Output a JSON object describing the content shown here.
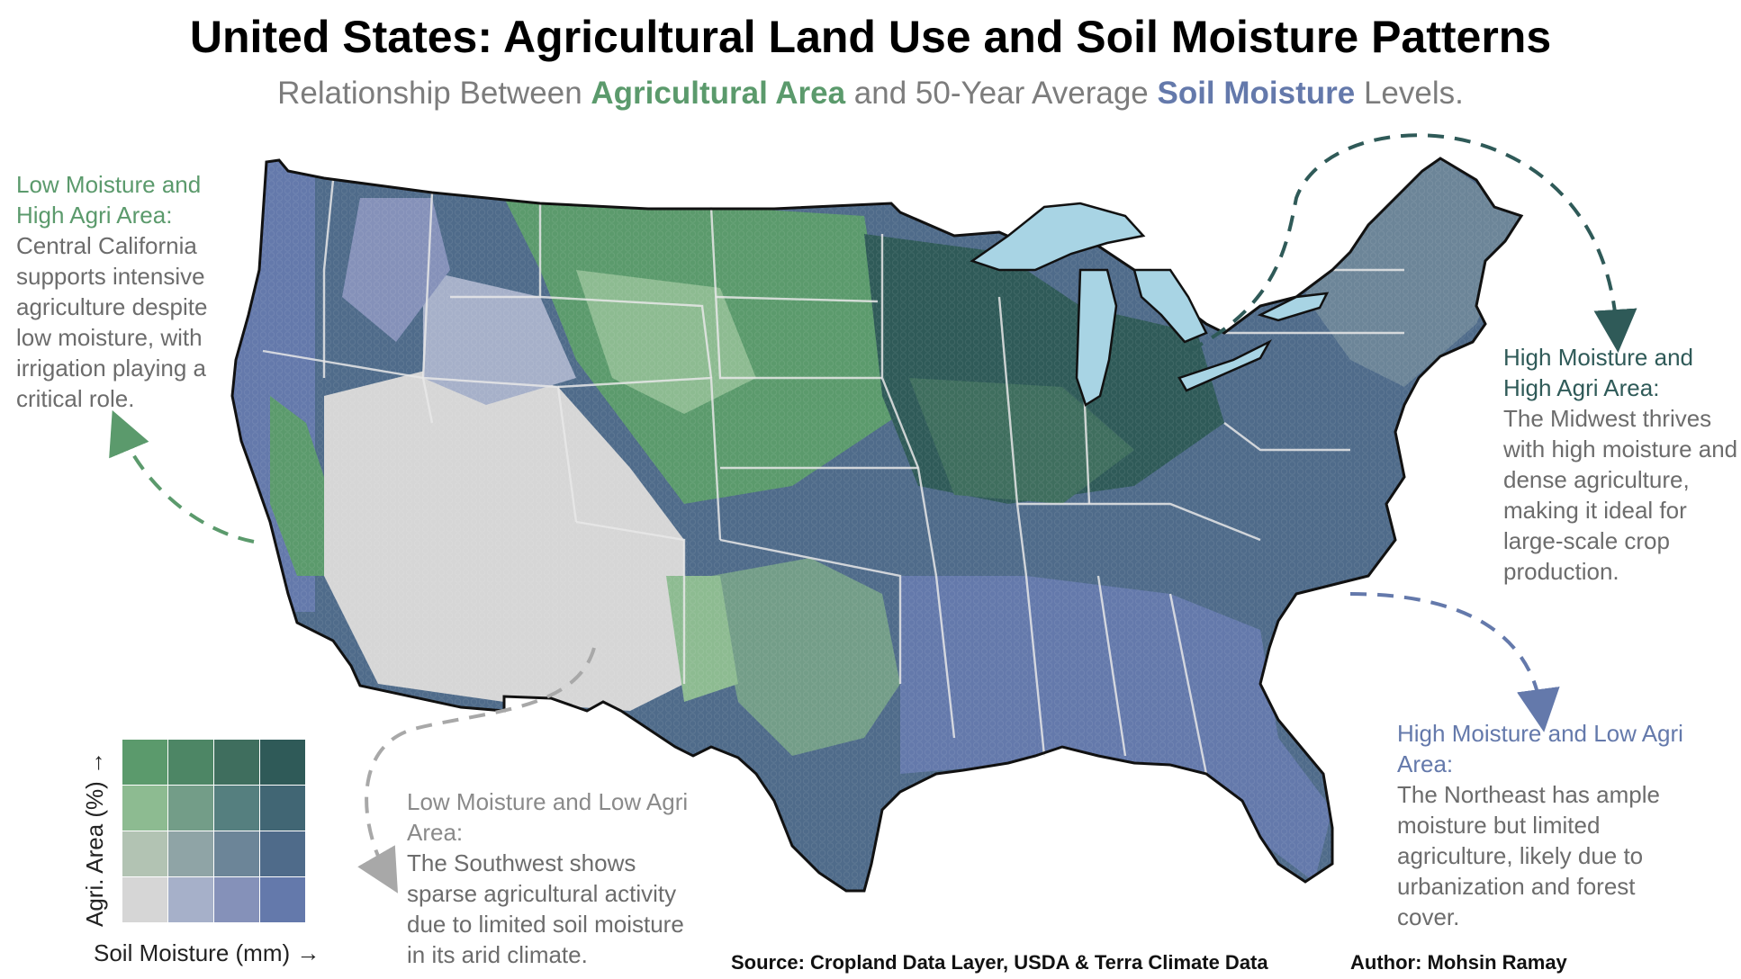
{
  "title": "United States: Agricultural Land Use and Soil Moisture Patterns",
  "subtitle": {
    "pre": "Relationship Between ",
    "agri": "Agricultural Area",
    "mid": " and 50-Year Average ",
    "moist": "Soil Moisture",
    "post": " Levels."
  },
  "annotations": {
    "california": {
      "heading": "Low Moisture and High Agri Area:",
      "body": "Central California supports intensive agriculture despite low moisture, with irrigation playing a critical role."
    },
    "midwest": {
      "heading": "High Moisture and High Agri Area:",
      "body": "The Midwest thrives with high moisture and dense agriculture, making it ideal for large-scale crop production."
    },
    "northeast": {
      "heading": "High Moisture and Low Agri Area:",
      "body": "The Northeast has ample moisture but limited agriculture, likely due to urbanization and forest cover."
    },
    "southwest": {
      "heading": "Low Moisture and Low Agri Area:",
      "body": "The Southwest shows sparse agricultural activity due to limited soil moisture in its arid climate."
    }
  },
  "legend": {
    "y_label": "Agri. Area (%) →",
    "x_label": "Soil Moisture (mm) →",
    "grid": [
      [
        "#d6d6d6",
        "#a6b0c9",
        "#8591b9",
        "#6479ab"
      ],
      [
        "#b2c3b3",
        "#8fa4a6",
        "#6c8598",
        "#4f6b8a"
      ],
      [
        "#8dbb91",
        "#739d88",
        "#557f7f",
        "#416674"
      ],
      [
        "#5b9a6c",
        "#4d8665",
        "#3f6e5e",
        "#2f5a58"
      ]
    ]
  },
  "colors": {
    "arid_low": "#d6d6d6",
    "agri_high": "#5b9a6c",
    "moist_high": "#6479ab",
    "both_high": "#2f5a58",
    "lakes": "#a8d4e4"
  },
  "footer": {
    "source": "Source: Cropland Data Layer, USDA & Terra Climate Data",
    "author": "Author: Mohsin Ramay"
  }
}
